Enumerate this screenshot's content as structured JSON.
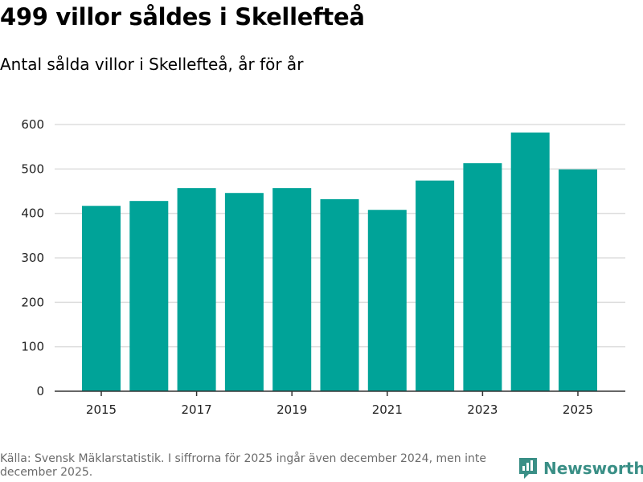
{
  "title": "499 villor såldes i Skellefteå",
  "subtitle": "Antal sålda villor i Skellefteå, år för år",
  "source": "Källa: Svensk Mäklarstatistik. I siffrorna för 2025 ingår även december 2024, men inte december 2025.",
  "brand": {
    "name": "Newsworthy",
    "icon": "newsworthy-logo-icon"
  },
  "colors": {
    "bar": "#00a398",
    "grid": "#dddddd",
    "axis": "#333333",
    "brand": "#3a8f86"
  },
  "chart_data": {
    "type": "bar",
    "title": "Antal sålda villor i Skellefteå, år för år",
    "categories": [
      "2015",
      "2016",
      "2017",
      "2018",
      "2019",
      "2020",
      "2021",
      "2022",
      "2023",
      "2024",
      "2025"
    ],
    "values": [
      417,
      428,
      457,
      446,
      457,
      432,
      408,
      474,
      513,
      582,
      499
    ],
    "x_tick_labels": [
      "2015",
      "2017",
      "2019",
      "2021",
      "2023",
      "2025"
    ],
    "y_ticks": [
      0,
      100,
      200,
      300,
      400,
      500,
      600
    ],
    "ylim": [
      0,
      600
    ],
    "xlabel": "",
    "ylabel": "",
    "grid": true
  }
}
